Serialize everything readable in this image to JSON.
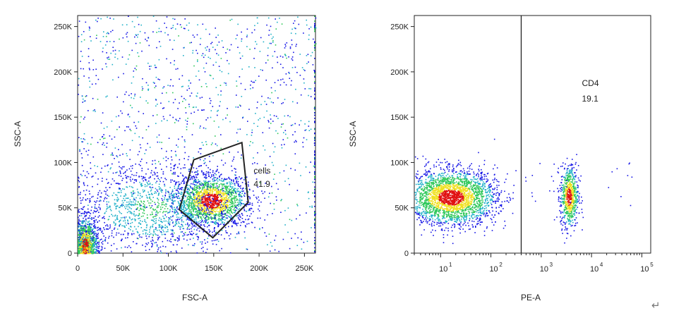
{
  "chart_data": [
    {
      "type": "scatter",
      "style": "density dot plot (blue → green → yellow → red)",
      "xlabel": "FSC-A",
      "ylabel": "SSC-A",
      "xscale": "linear",
      "yscale": "linear",
      "xlim": [
        0,
        262144
      ],
      "ylim": [
        0,
        262144
      ],
      "x_ticks": [
        0,
        50000,
        100000,
        150000,
        200000,
        250000
      ],
      "x_tick_labels": [
        "0",
        "50K",
        "100K",
        "150K",
        "200K",
        "250K"
      ],
      "y_ticks": [
        0,
        50000,
        100000,
        150000,
        200000,
        250000
      ],
      "y_tick_labels": [
        "0",
        "50K",
        "100K",
        "150K",
        "200K",
        "250K"
      ],
      "clusters": [
        {
          "center": [
            147000,
            58000
          ],
          "spread": [
            20000,
            14000
          ],
          "weight": 0.34
        },
        {
          "center": [
            8000,
            8000
          ],
          "spread": [
            7000,
            16000
          ],
          "weight": 0.2
        },
        {
          "center": [
            80000,
            50000
          ],
          "spread": [
            45000,
            26000
          ],
          "weight": 0.24
        },
        {
          "center": [
            150000,
            160000
          ],
          "spread": [
            70000,
            60000
          ],
          "weight": 0.22
        }
      ],
      "gates": [
        {
          "name": "cells",
          "value": "41.9",
          "shape": "polygon",
          "vertices": [
            [
              128000,
              103000
            ],
            [
              181000,
              122000
            ],
            [
              188000,
              56000
            ],
            [
              149000,
              17000
            ],
            [
              112000,
              48000
            ]
          ]
        }
      ]
    },
    {
      "type": "scatter",
      "style": "density dot plot (blue → green → yellow → red)",
      "xlabel": "PE-A",
      "ylabel": "SSC-A",
      "xscale": "log",
      "yscale": "linear",
      "xlim": [
        3,
        150000
      ],
      "ylim": [
        0,
        262144
      ],
      "x_ticks": [
        10,
        100,
        1000,
        10000,
        100000
      ],
      "x_tick_labels": [
        "10",
        "10",
        "10",
        "10",
        "10"
      ],
      "x_tick_exponents": [
        "1",
        "2",
        "3",
        "4",
        "5"
      ],
      "y_ticks": [
        0,
        50000,
        100000,
        150000,
        200000,
        250000
      ],
      "y_tick_labels": [
        "0",
        "50K",
        "100K",
        "150K",
        "200K",
        "250K"
      ],
      "clusters": [
        {
          "center_log10": 1.2,
          "spread_log10": 0.45,
          "center_y": 62000,
          "spread_y": 15000,
          "weight": 0.8
        },
        {
          "center_log10": 3.55,
          "spread_log10": 0.09,
          "center_y": 63000,
          "spread_y": 17000,
          "weight": 0.2
        }
      ],
      "gates": [
        {
          "name": "CD4",
          "value": "19.1",
          "shape": "vertical-line",
          "threshold": 400
        }
      ]
    }
  ],
  "colors": {
    "low_density": "#1414e6",
    "mid_density": "#2fc85a",
    "high_density": "#f0e020",
    "peak_density": "#e01010",
    "gate_line": "#222222"
  }
}
